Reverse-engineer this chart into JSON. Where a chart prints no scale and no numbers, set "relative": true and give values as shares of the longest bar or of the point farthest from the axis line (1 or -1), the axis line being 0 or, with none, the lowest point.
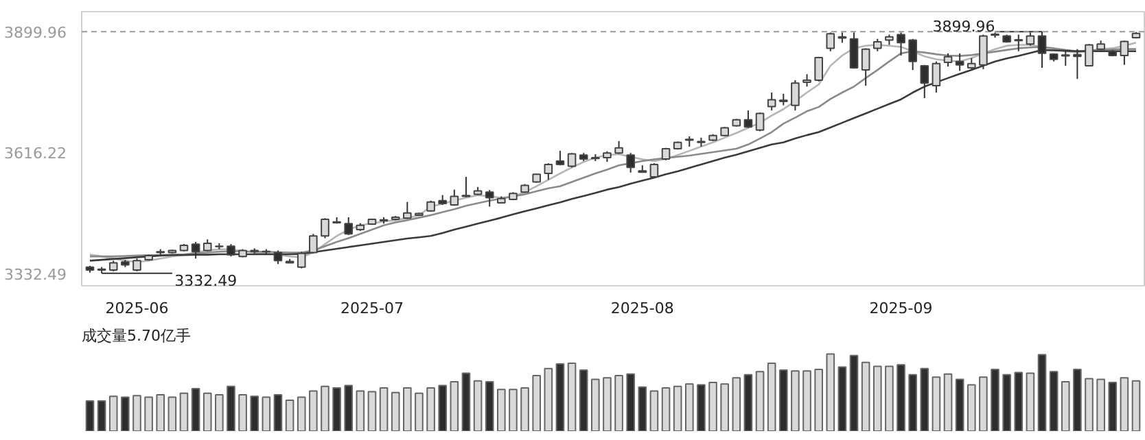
{
  "chart_data": [
    {
      "type": "candlestick",
      "categories": [
        null,
        null,
        null,
        null,
        "2025-06",
        null,
        null,
        null,
        null,
        null,
        null,
        null,
        null,
        null,
        null,
        null,
        null,
        null,
        null,
        null,
        null,
        null,
        null,
        null,
        "2025-07",
        null,
        null,
        null,
        null,
        null,
        null,
        null,
        null,
        null,
        null,
        null,
        null,
        null,
        null,
        null,
        null,
        null,
        null,
        null,
        null,
        null,
        null,
        "2025-08",
        null,
        null,
        null,
        null,
        null,
        null,
        null,
        null,
        null,
        null,
        null,
        null,
        null,
        null,
        null,
        null,
        null,
        null,
        null,
        null,
        null,
        "2025-09",
        null,
        null,
        null,
        null,
        null,
        null,
        null,
        null,
        null,
        null,
        null,
        null,
        null,
        null,
        null,
        null,
        null,
        null,
        null,
        null
      ],
      "ohlc": [
        [
          3347,
          3350,
          3334,
          3340
        ],
        [
          3342,
          3347,
          3332.49,
          3340
        ],
        [
          3340,
          3362,
          3337,
          3357
        ],
        [
          3359,
          3364,
          3347,
          3352
        ],
        [
          3340,
          3367,
          3337,
          3362
        ],
        [
          3364,
          3376,
          3362,
          3374
        ],
        [
          3381,
          3389,
          3376,
          3383
        ],
        [
          3381,
          3388,
          3379,
          3386
        ],
        [
          3386,
          3401,
          3384,
          3398
        ],
        [
          3401,
          3406,
          3367,
          3383
        ],
        [
          3386,
          3412,
          3384,
          3403
        ],
        [
          3395,
          3403,
          3389,
          3396
        ],
        [
          3396,
          3401,
          3372,
          3376
        ],
        [
          3372,
          3389,
          3370,
          3386
        ],
        [
          3386,
          3391,
          3379,
          3384
        ],
        [
          3383,
          3389,
          3376,
          3384
        ],
        [
          3381,
          3386,
          3354,
          3362
        ],
        [
          3357,
          3366,
          3356,
          3360
        ],
        [
          3347,
          3383,
          3344,
          3379
        ],
        [
          3381,
          3425,
          3379,
          3420
        ],
        [
          3420,
          3462,
          3415,
          3459
        ],
        [
          3453,
          3464,
          3449,
          3451
        ],
        [
          3449,
          3464,
          3422,
          3425
        ],
        [
          3435,
          3450,
          3432,
          3445
        ],
        [
          3448,
          3461,
          3446,
          3459
        ],
        [
          3456,
          3464,
          3449,
          3458
        ],
        [
          3459,
          3467,
          3457,
          3464
        ],
        [
          3462,
          3500,
          3460,
          3474
        ],
        [
          3469,
          3475,
          3467,
          3473
        ],
        [
          3479,
          3503,
          3477,
          3500
        ],
        [
          3503,
          3516,
          3493,
          3496
        ],
        [
          3493,
          3529,
          3491,
          3513
        ],
        [
          3515,
          3559,
          3511,
          3513
        ],
        [
          3518,
          3535,
          3516,
          3526
        ],
        [
          3523,
          3528,
          3489,
          3510
        ],
        [
          3498,
          3513,
          3496,
          3508
        ],
        [
          3506,
          3523,
          3504,
          3520
        ],
        [
          3523,
          3542,
          3521,
          3539
        ],
        [
          3547,
          3566,
          3545,
          3565
        ],
        [
          3567,
          3591,
          3552,
          3588
        ],
        [
          3596,
          3620,
          3586,
          3588
        ],
        [
          3584,
          3615,
          3581,
          3613
        ],
        [
          3610,
          3615,
          3596,
          3601
        ],
        [
          3602,
          3612,
          3596,
          3604
        ],
        [
          3604,
          3619,
          3594,
          3615
        ],
        [
          3615,
          3643,
          3613,
          3627
        ],
        [
          3610,
          3615,
          3569,
          3581
        ],
        [
          3573,
          3586,
          3569,
          3570
        ],
        [
          3559,
          3591,
          3557,
          3588
        ],
        [
          3601,
          3627,
          3598,
          3625
        ],
        [
          3625,
          3642,
          3623,
          3640
        ],
        [
          3645,
          3654,
          3630,
          3647
        ],
        [
          3642,
          3651,
          3630,
          3640
        ],
        [
          3645,
          3659,
          3643,
          3656
        ],
        [
          3656,
          3676,
          3654,
          3674
        ],
        [
          3679,
          3695,
          3677,
          3693
        ],
        [
          3693,
          3715,
          3674,
          3676
        ],
        [
          3669,
          3710,
          3666,
          3708
        ],
        [
          3724,
          3757,
          3715,
          3740
        ],
        [
          3739,
          3754,
          3727,
          3736
        ],
        [
          3727,
          3786,
          3715,
          3779
        ],
        [
          3781,
          3800,
          3771,
          3786
        ],
        [
          3786,
          3841,
          3783,
          3839
        ],
        [
          3861,
          3898,
          3854,
          3895
        ],
        [
          3888,
          3898,
          3874,
          3885
        ],
        [
          3883,
          3898,
          3813,
          3815
        ],
        [
          3810,
          3861,
          3773,
          3859
        ],
        [
          3861,
          3883,
          3854,
          3876
        ],
        [
          3880,
          3893,
          3869,
          3888
        ],
        [
          3893,
          3898,
          3844,
          3874
        ],
        [
          3880,
          3883,
          3810,
          3830
        ],
        [
          3820,
          3822,
          3744,
          3779
        ],
        [
          3773,
          3830,
          3757,
          3825
        ],
        [
          3828,
          3849,
          3818,
          3841
        ],
        [
          3830,
          3849,
          3808,
          3822
        ],
        [
          3815,
          3838,
          3812,
          3825
        ],
        [
          3822,
          3893,
          3812,
          3890
        ],
        [
          3894,
          3898,
          3886,
          3892
        ],
        [
          3890,
          3893,
          3874,
          3876
        ],
        [
          3881,
          3893,
          3854,
          3879
        ],
        [
          3871,
          3898,
          3867,
          3890
        ],
        [
          3890,
          3899.96,
          3815,
          3849
        ],
        [
          3847,
          3849,
          3830,
          3835
        ],
        [
          3843,
          3854,
          3820,
          3845
        ],
        [
          3846,
          3859,
          3789,
          3842
        ],
        [
          3820,
          3871,
          3818,
          3869
        ],
        [
          3859,
          3879,
          3857,
          3871
        ],
        [
          3854,
          3857,
          3842,
          3844
        ],
        [
          3844,
          3879,
          3822,
          3877
        ],
        [
          3886,
          3899,
          3884,
          3896
        ]
      ],
      "colors": [
        "#2e2e2e",
        "#2e2e2e",
        "#d9d9d9",
        "#2e2e2e",
        "#d9d9d9",
        "#d9d9d9",
        "#d9d9d9",
        "#d9d9d9",
        "#d9d9d9",
        "#2e2e2e",
        "#d9d9d9",
        "#d9d9d9",
        "#2e2e2e",
        "#d9d9d9",
        "#2e2e2e",
        "#d9d9d9",
        "#2e2e2e",
        "#d9d9d9",
        "#d9d9d9",
        "#d9d9d9",
        "#d9d9d9",
        "#2e2e2e",
        "#2e2e2e",
        "#d9d9d9",
        "#d9d9d9",
        "#d9d9d9",
        "#d9d9d9",
        "#d9d9d9",
        "#d9d9d9",
        "#d9d9d9",
        "#2e2e2e",
        "#d9d9d9",
        "#2e2e2e",
        "#d9d9d9",
        "#2e2e2e",
        "#d9d9d9",
        "#d9d9d9",
        "#d9d9d9",
        "#d9d9d9",
        "#d9d9d9",
        "#2e2e2e",
        "#d9d9d9",
        "#2e2e2e",
        "#d9d9d9",
        "#d9d9d9",
        "#d9d9d9",
        "#2e2e2e",
        "#2e2e2e",
        "#d9d9d9",
        "#d9d9d9",
        "#d9d9d9",
        "#d9d9d9",
        "#2e2e2e",
        "#d9d9d9",
        "#d9d9d9",
        "#d9d9d9",
        "#2e2e2e",
        "#d9d9d9",
        "#d9d9d9",
        "#2e2e2e",
        "#d9d9d9",
        "#d9d9d9",
        "#d9d9d9",
        "#d9d9d9",
        "#2e2e2e",
        "#2e2e2e",
        "#d9d9d9",
        "#d9d9d9",
        "#d9d9d9",
        "#2e2e2e",
        "#2e2e2e",
        "#2e2e2e",
        "#d9d9d9",
        "#d9d9d9",
        "#2e2e2e",
        "#d9d9d9",
        "#d9d9d9",
        "#2e2e2e",
        "#2e2e2e",
        "#2e2e2e",
        "#d9d9d9",
        "#2e2e2e",
        "#2e2e2e",
        "#d9d9d9",
        "#2e2e2e",
        "#d9d9d9",
        "#d9d9d9",
        "#2e2e2e",
        "#d9d9d9",
        "#d9d9d9"
      ],
      "series": [
        {
          "type": "line",
          "color": "#b5b5b5",
          "values": [
            3376,
            3372,
            3367,
            3362,
            3359,
            3362,
            3367,
            3372,
            3376,
            3381,
            3386,
            3389,
            3388,
            3385,
            3381,
            3379,
            3376,
            3372,
            3370,
            3381,
            3401,
            3420,
            3435,
            3445,
            3450,
            3454,
            3457,
            3462,
            3469,
            3489,
            3496,
            3503,
            3510,
            3516,
            3513,
            3510,
            3513,
            3523,
            3537,
            3552,
            3567,
            3581,
            3594,
            3604,
            3610,
            3612,
            3606,
            3600,
            3596,
            3601,
            3610,
            3620,
            3630,
            3640,
            3651,
            3662,
            3674,
            3686,
            3703,
            3718,
            3737,
            3757,
            3776,
            3820,
            3844,
            3861,
            3867,
            3869,
            3867,
            3864,
            3854,
            3842,
            3835,
            3832,
            3830,
            3838,
            3849,
            3859,
            3867,
            3869,
            3869,
            3864,
            3859,
            3854,
            3851,
            3855,
            3859,
            3861,
            3867,
            3874
          ]
        },
        {
          "type": "line",
          "color": "#8a8a8a",
          "values": [
            3372,
            3372,
            3372,
            3373,
            3374,
            3375,
            3375,
            3376,
            3377,
            3379,
            3381,
            3383,
            3384,
            3384,
            3383,
            3383,
            3382,
            3381,
            3381,
            3386,
            3396,
            3406,
            3415,
            3425,
            3435,
            3445,
            3452,
            3457,
            3463,
            3469,
            3476,
            3483,
            3491,
            3497,
            3503,
            3508,
            3513,
            3518,
            3525,
            3532,
            3537,
            3547,
            3557,
            3567,
            3576,
            3586,
            3591,
            3596,
            3600,
            3603,
            3606,
            3609,
            3613,
            3617,
            3621,
            3625,
            3635,
            3649,
            3664,
            3684,
            3698,
            3713,
            3723,
            3742,
            3757,
            3771,
            3791,
            3810,
            3830,
            3849,
            3854,
            3851,
            3847,
            3844,
            3843,
            3845,
            3849,
            3853,
            3857,
            3861,
            3863,
            3864,
            3861,
            3857,
            3854,
            3856,
            3857,
            3858,
            3859,
            3859
          ]
        },
        {
          "type": "line",
          "color": "#3a3a3a",
          "values": [
            3362,
            3364,
            3366,
            3368,
            3370,
            3372,
            3374,
            3375,
            3375,
            3376,
            3376,
            3377,
            3377,
            3377,
            3377,
            3377,
            3377,
            3377,
            3378,
            3382,
            3386,
            3390,
            3394,
            3398,
            3402,
            3406,
            3410,
            3414,
            3417,
            3420,
            3427,
            3435,
            3442,
            3449,
            3456,
            3463,
            3471,
            3478,
            3485,
            3492,
            3499,
            3507,
            3514,
            3521,
            3529,
            3535,
            3543,
            3550,
            3557,
            3565,
            3572,
            3580,
            3588,
            3596,
            3604,
            3611,
            3619,
            3627,
            3635,
            3640,
            3649,
            3657,
            3664,
            3675,
            3686,
            3697,
            3708,
            3719,
            3730,
            3741,
            3757,
            3771,
            3781,
            3791,
            3801,
            3810,
            3820,
            3830,
            3837,
            3843,
            3850,
            3857,
            3856,
            3855,
            3854,
            3854,
            3854,
            3854,
            3854,
            3854
          ]
        }
      ],
      "ylim": [
        3303,
        3947
      ],
      "yticks": [
        3332.49,
        3616.22,
        3899.96
      ],
      "ref_lines": [
        {
          "axis": "y",
          "value": 3899.96,
          "color": "#9a9a9a",
          "line_style": "dashed"
        }
      ],
      "annotations": [
        {
          "text": "3899.96",
          "y": 3899.96
        },
        "3332.49"
      ]
    },
    {
      "type": "bar",
      "title": "成交量5.70亿手",
      "relative": true,
      "categories": [
        null,
        null,
        null,
        null,
        null,
        null,
        null,
        null,
        null,
        null,
        null,
        null,
        null,
        null,
        null,
        null,
        null,
        null,
        null,
        null,
        null,
        null,
        null,
        null,
        null,
        null,
        null,
        null,
        null,
        null,
        null,
        null,
        null,
        null,
        null,
        null,
        null,
        null,
        null,
        null,
        null,
        null,
        null,
        null,
        null,
        null,
        null,
        null,
        null,
        null,
        null,
        null,
        null,
        null,
        null,
        null,
        null,
        null,
        null,
        null,
        null,
        null,
        null,
        null,
        null,
        null,
        null,
        null,
        null,
        null,
        null,
        null,
        null,
        null,
        null,
        null,
        null,
        null,
        null,
        null,
        null,
        null,
        null,
        null,
        null,
        null,
        null,
        null,
        null,
        null
      ],
      "values": [
        0.39,
        0.39,
        0.45,
        0.44,
        0.46,
        0.44,
        0.47,
        0.44,
        0.49,
        0.55,
        0.49,
        0.47,
        0.58,
        0.47,
        0.45,
        0.44,
        0.47,
        0.4,
        0.44,
        0.52,
        0.58,
        0.56,
        0.59,
        0.52,
        0.51,
        0.56,
        0.5,
        0.56,
        0.49,
        0.56,
        0.59,
        0.64,
        0.75,
        0.65,
        0.64,
        0.54,
        0.54,
        0.56,
        0.72,
        0.81,
        0.87,
        0.88,
        0.79,
        0.67,
        0.69,
        0.72,
        0.74,
        0.57,
        0.52,
        0.56,
        0.58,
        0.61,
        0.6,
        0.63,
        0.61,
        0.69,
        0.73,
        0.77,
        0.88,
        0.79,
        0.78,
        0.78,
        0.8,
        1,
        0.83,
        0.98,
        0.89,
        0.84,
        0.84,
        0.86,
        0.73,
        0.81,
        0.7,
        0.74,
        0.67,
        0.6,
        0.7,
        0.8,
        0.73,
        0.76,
        0.75,
        0.99,
        0.77,
        0.64,
        0.8,
        0.68,
        0.67,
        0.63,
        0.69,
        0.65
      ],
      "colors": [
        "#2e2e2e",
        "#2e2e2e",
        "#d9d9d9",
        "#2e2e2e",
        "#d9d9d9",
        "#d9d9d9",
        "#d9d9d9",
        "#d9d9d9",
        "#d9d9d9",
        "#2e2e2e",
        "#d9d9d9",
        "#d9d9d9",
        "#2e2e2e",
        "#d9d9d9",
        "#2e2e2e",
        "#d9d9d9",
        "#2e2e2e",
        "#d9d9d9",
        "#d9d9d9",
        "#d9d9d9",
        "#d9d9d9",
        "#2e2e2e",
        "#2e2e2e",
        "#d9d9d9",
        "#d9d9d9",
        "#d9d9d9",
        "#d9d9d9",
        "#d9d9d9",
        "#d9d9d9",
        "#d9d9d9",
        "#2e2e2e",
        "#d9d9d9",
        "#2e2e2e",
        "#d9d9d9",
        "#2e2e2e",
        "#d9d9d9",
        "#d9d9d9",
        "#d9d9d9",
        "#d9d9d9",
        "#d9d9d9",
        "#2e2e2e",
        "#d9d9d9",
        "#2e2e2e",
        "#d9d9d9",
        "#d9d9d9",
        "#d9d9d9",
        "#2e2e2e",
        "#2e2e2e",
        "#d9d9d9",
        "#d9d9d9",
        "#d9d9d9",
        "#d9d9d9",
        "#2e2e2e",
        "#d9d9d9",
        "#d9d9d9",
        "#d9d9d9",
        "#2e2e2e",
        "#d9d9d9",
        "#d9d9d9",
        "#2e2e2e",
        "#d9d9d9",
        "#d9d9d9",
        "#d9d9d9",
        "#d9d9d9",
        "#2e2e2e",
        "#2e2e2e",
        "#d9d9d9",
        "#d9d9d9",
        "#d9d9d9",
        "#2e2e2e",
        "#2e2e2e",
        "#2e2e2e",
        "#d9d9d9",
        "#d9d9d9",
        "#2e2e2e",
        "#d9d9d9",
        "#d9d9d9",
        "#2e2e2e",
        "#2e2e2e",
        "#2e2e2e",
        "#d9d9d9",
        "#2e2e2e",
        "#2e2e2e",
        "#d9d9d9",
        "#2e2e2e",
        "#d9d9d9",
        "#d9d9d9",
        "#2e2e2e",
        "#d9d9d9",
        "#d9d9d9"
      ]
    }
  ]
}
